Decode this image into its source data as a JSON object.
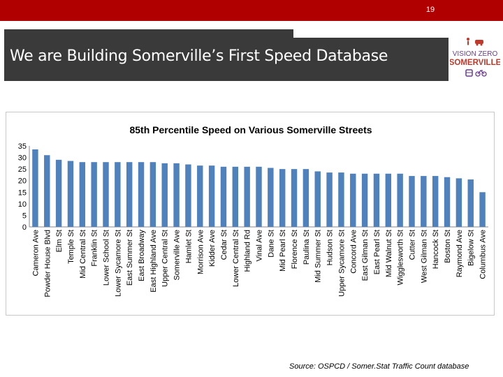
{
  "header": {
    "slide_number": "19"
  },
  "title": "We are Building Somerville’s First Speed Database",
  "logo": {
    "line1": "VISION ZERO",
    "line2": "SOMERVILLE",
    "icons": [
      "pedestrian-icon",
      "car-icon",
      "bus-icon",
      "bicycle-icon"
    ]
  },
  "source": "Source: OSPCD / Somer.Stat Traffic Count database",
  "colors": {
    "topbar": "#b00000",
    "title_bg": "#3a3a3a",
    "bar": "#4f81bd",
    "logo_red": "#c0392b",
    "logo_purple": "#6a3d8f"
  },
  "chart_data": {
    "type": "bar",
    "title": "85th Percentile Speed on Various Somerville Streets",
    "xlabel": "",
    "ylabel": "",
    "ylim": [
      0,
      35
    ],
    "yticks": [
      0,
      5,
      10,
      15,
      20,
      25,
      30,
      35
    ],
    "grid": false,
    "categories": [
      "Cameron Ave",
      "Powder House Blvd",
      "Elm St",
      "Temple St",
      "Mid Central St",
      "Franklin St",
      "Lower School St",
      "Lower Sycamore St",
      "East Summer St",
      "East Broadway",
      "East Highland Ave",
      "Upper Central St",
      "Somerville Ave",
      "Hamlet St",
      "Morrison Ave",
      "Kidder Ave",
      "Cedar St",
      "Lower Central St",
      "Highland Rd",
      "Vinal Ave",
      "Dane St",
      "Mid Pearl St",
      "Florence St",
      "Paulina St",
      "Mid Summer St",
      "Hudson St",
      "Upper Sycamore St",
      "Concord Ave",
      "East Gilman St",
      "East Pearl St",
      "Mid Walnut St",
      "Wigglesworth St",
      "Cutter St",
      "West Gilman St",
      "Hancock St",
      "Boston St",
      "Raymond Ave",
      "Bigelow St",
      "Columbus Ave"
    ],
    "values": [
      33.5,
      31,
      29,
      28.5,
      28,
      28,
      28,
      28,
      28,
      28,
      28,
      27.5,
      27.5,
      27,
      26.5,
      26.5,
      26,
      26,
      26,
      26,
      25.5,
      25,
      25,
      25,
      24,
      23.5,
      23.5,
      23,
      23,
      23,
      23,
      23,
      22,
      22,
      22,
      21.5,
      21,
      20.5,
      15
    ]
  }
}
